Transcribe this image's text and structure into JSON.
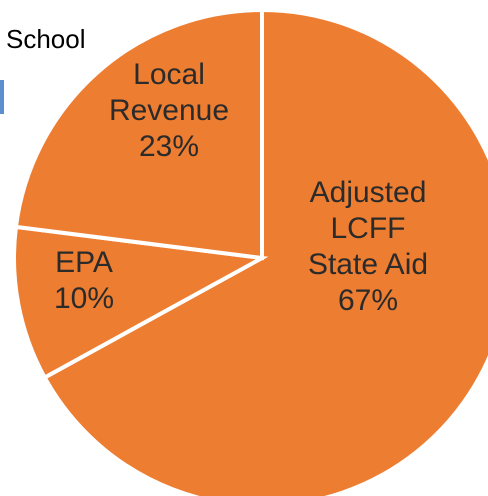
{
  "header": {
    "title_fragment": "School"
  },
  "colors": {
    "slice_fill": "#ED7D31",
    "slice_border": "#ffffff",
    "label_text": "#2b2b2b"
  },
  "chart_data": {
    "type": "pie",
    "start_angle_deg": 0,
    "direction": "clockwise",
    "slices": [
      {
        "label_lines": [
          "Adjusted",
          "LCFF",
          "State Aid"
        ],
        "percent_text": "67%",
        "value": 67
      },
      {
        "label_lines": [
          "EPA"
        ],
        "percent_text": "10%",
        "value": 10
      },
      {
        "label_lines": [
          "Local",
          "Revenue"
        ],
        "percent_text": "23%",
        "value": 23
      }
    ]
  }
}
